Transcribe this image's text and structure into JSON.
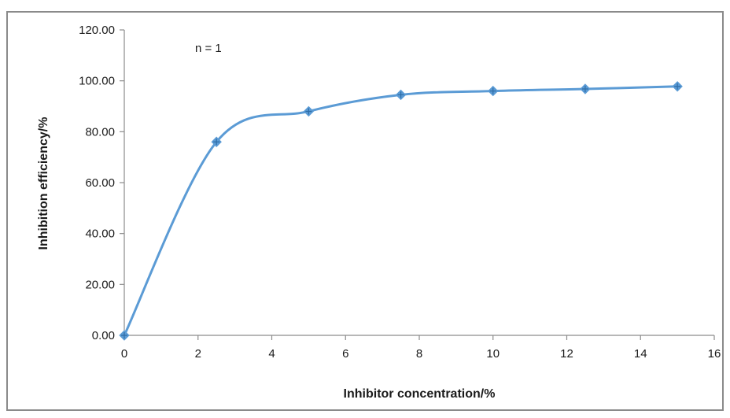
{
  "chart_data": {
    "type": "line",
    "title": "",
    "xlabel": "Inhibitor concentration/%",
    "ylabel": "Inhibition efficiency/%",
    "annotation": "n = 1",
    "xlim": [
      0,
      16
    ],
    "ylim": [
      0,
      120
    ],
    "x_ticks": [
      "0",
      "2",
      "4",
      "6",
      "8",
      "10",
      "12",
      "14",
      "16"
    ],
    "y_ticks": [
      "0.00",
      "20.00",
      "40.00",
      "60.00",
      "80.00",
      "100.00",
      "120.00"
    ],
    "grid": false,
    "legend": "none",
    "line_color": "#5b9bd5",
    "series": [
      {
        "x": [
          0,
          2.5,
          5,
          7.5,
          10,
          12.5,
          15
        ],
        "y": [
          0,
          76,
          88,
          94.5,
          96,
          96.8,
          97.8
        ]
      }
    ]
  }
}
